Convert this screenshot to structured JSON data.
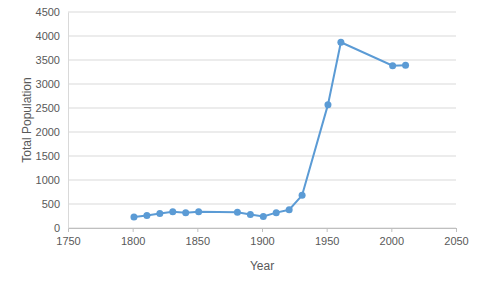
{
  "chart_data": {
    "type": "line",
    "x_label": "Year",
    "y_label": "Total Population",
    "x": [
      1801,
      1811,
      1821,
      1831,
      1841,
      1851,
      1881,
      1891,
      1901,
      1911,
      1921,
      1931,
      1951,
      1961,
      2001,
      2011
    ],
    "values": [
      230,
      260,
      300,
      340,
      320,
      340,
      330,
      280,
      240,
      320,
      380,
      680,
      2570,
      3870,
      3380,
      3390
    ],
    "color": "#5b9bd5",
    "marker": "circle",
    "line_style": "solid",
    "xlim": [
      1750,
      2050
    ],
    "xticks": [
      1750,
      1800,
      1850,
      1900,
      1950,
      2000,
      2050
    ],
    "ylim": [
      0,
      4500
    ],
    "yticks": [
      0,
      500,
      1000,
      1500,
      2000,
      2500,
      3000,
      3500,
      4000,
      4500
    ],
    "grid": true
  }
}
